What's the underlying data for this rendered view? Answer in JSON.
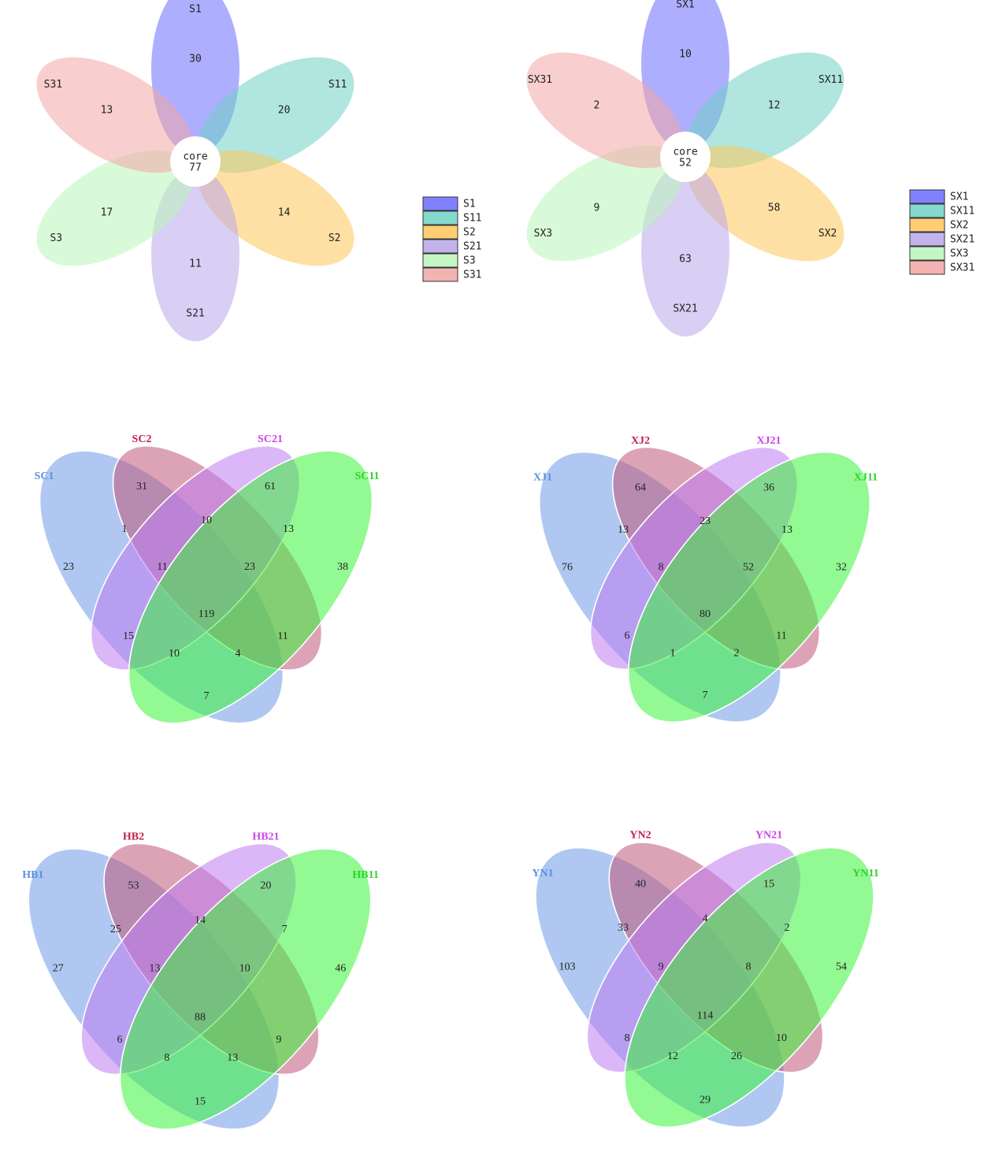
{
  "flowers": [
    {
      "core_label": "core",
      "core_value": "77",
      "petals": [
        {
          "name": "S1",
          "value": "30",
          "color": "#6b6bff"
        },
        {
          "name": "S11",
          "value": "20",
          "color": "#6fd1c4"
        },
        {
          "name": "S2",
          "value": "14",
          "color": "#ffc65a"
        },
        {
          "name": "S21",
          "value": "11",
          "color": "#b9a6ea"
        },
        {
          "name": "S3",
          "value": "17",
          "color": "#b9f5b9"
        },
        {
          "name": "S31",
          "value": "13",
          "color": "#f2a6a6"
        }
      ],
      "legend": [
        "S1",
        "S11",
        "S2",
        "S21",
        "S3",
        "S31"
      ]
    },
    {
      "core_label": "core",
      "core_value": "52",
      "petals": [
        {
          "name": "SX1",
          "value": "10",
          "color": "#6b6bff"
        },
        {
          "name": "SX11",
          "value": "12",
          "color": "#6fd1c4"
        },
        {
          "name": "SX2",
          "value": "58",
          "color": "#ffc65a"
        },
        {
          "name": "SX21",
          "value": "63",
          "color": "#b9a6ea"
        },
        {
          "name": "SX3",
          "value": "9",
          "color": "#b9f5b9"
        },
        {
          "name": "SX31",
          "value": "2",
          "color": "#f2a6a6"
        }
      ],
      "legend": [
        "SX1",
        "SX11",
        "SX2",
        "SX21",
        "SX3",
        "SX31"
      ]
    }
  ],
  "venns": [
    {
      "sets": [
        {
          "name": "SC1",
          "color": "#5b8fe0"
        },
        {
          "name": "SC2",
          "color": "#c0204a"
        },
        {
          "name": "SC21",
          "color": "#cc44e8"
        },
        {
          "name": "SC11",
          "color": "#2ad42a"
        }
      ],
      "regions": {
        "A": "23",
        "B": "31",
        "C": "61",
        "D": "38",
        "AB": "1",
        "BC": "10",
        "CD": "13",
        "ABC": "11",
        "BCD": "23",
        "AC": "15",
        "ABCD": "119",
        "BD": "11",
        "ACD": "10",
        "ABD": "4",
        "AD": "7"
      }
    },
    {
      "sets": [
        {
          "name": "XJ1",
          "color": "#5b8fe0"
        },
        {
          "name": "XJ2",
          "color": "#c0204a"
        },
        {
          "name": "XJ21",
          "color": "#cc44e8"
        },
        {
          "name": "XJ11",
          "color": "#2ad42a"
        }
      ],
      "regions": {
        "A": "76",
        "B": "64",
        "C": "36",
        "D": "32",
        "AB": "13",
        "BC": "23",
        "CD": "13",
        "ABC": "8",
        "BCD": "52",
        "AC": "6",
        "ABCD": "80",
        "BD": "11",
        "ACD": "1",
        "ABD": "2",
        "AD": "7"
      }
    },
    {
      "sets": [
        {
          "name": "HB1",
          "color": "#5b8fe0"
        },
        {
          "name": "HB2",
          "color": "#c0204a"
        },
        {
          "name": "HB21",
          "color": "#cc44e8"
        },
        {
          "name": "HB11",
          "color": "#2ad42a"
        }
      ],
      "regions": {
        "A": "27",
        "B": "53",
        "C": "20",
        "D": "46",
        "AB": "25",
        "BC": "14",
        "CD": "7",
        "ABC": "13",
        "BCD": "10",
        "AC": "6",
        "ABCD": "88",
        "BD": "9",
        "ACD": "8",
        "ABD": "13",
        "AD": "15"
      }
    },
    {
      "sets": [
        {
          "name": "YN1",
          "color": "#5b8fe0"
        },
        {
          "name": "YN2",
          "color": "#c0204a"
        },
        {
          "name": "YN21",
          "color": "#cc44e8"
        },
        {
          "name": "YN11",
          "color": "#2ad42a"
        }
      ],
      "regions": {
        "A": "103",
        "B": "40",
        "C": "15",
        "D": "54",
        "AB": "33",
        "BC": "4",
        "CD": "2",
        "ABC": "9",
        "BCD": "8",
        "AC": "8",
        "ABCD": "114",
        "BD": "10",
        "ACD": "12",
        "ABD": "26",
        "AD": "29"
      }
    }
  ]
}
